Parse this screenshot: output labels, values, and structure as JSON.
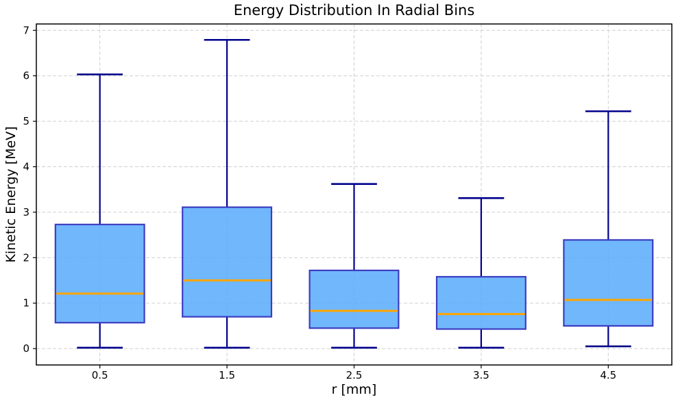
{
  "chart_data": {
    "type": "boxplot",
    "title": "Energy Distribution In Radial Bins",
    "xlabel": "r [mm]",
    "ylabel": "Kinetic Energy [MeV]",
    "categories": [
      "0.5",
      "1.5",
      "2.5",
      "3.5",
      "4.5"
    ],
    "x_positions": [
      0.5,
      1.5,
      2.5,
      3.5,
      4.5
    ],
    "boxes": [
      {
        "label": "0.5",
        "whislo": 0.02,
        "q1": 0.57,
        "med": 1.21,
        "q3": 2.73,
        "whishi": 6.03
      },
      {
        "label": "1.5",
        "whislo": 0.02,
        "q1": 0.7,
        "med": 1.5,
        "q3": 3.11,
        "whishi": 6.79
      },
      {
        "label": "2.5",
        "whislo": 0.02,
        "q1": 0.45,
        "med": 0.83,
        "q3": 1.72,
        "whishi": 3.62
      },
      {
        "label": "3.5",
        "whislo": 0.02,
        "q1": 0.43,
        "med": 0.76,
        "q3": 1.58,
        "whishi": 3.31
      },
      {
        "label": "4.5",
        "whislo": 0.05,
        "q1": 0.5,
        "med": 1.07,
        "q3": 2.39,
        "whishi": 5.22
      }
    ],
    "box_width": 0.7,
    "cap_width": 0.36,
    "xlim": [
      0,
      5
    ],
    "ylim": [
      -0.36,
      7.14
    ],
    "yticks": [
      0,
      1,
      2,
      3,
      4,
      5,
      6,
      7
    ],
    "grid": {
      "visible": true,
      "style": "dashed",
      "color": "#cfcfcf"
    },
    "legend": {
      "visible": false
    },
    "colors": {
      "box_fill": "#57aafc",
      "box_fill_opacity": 0.85,
      "box_edge": "#3c3cc0",
      "whisker": "#00008b",
      "median": "#ffa500",
      "frame": "#000000",
      "text": "#000000"
    }
  }
}
